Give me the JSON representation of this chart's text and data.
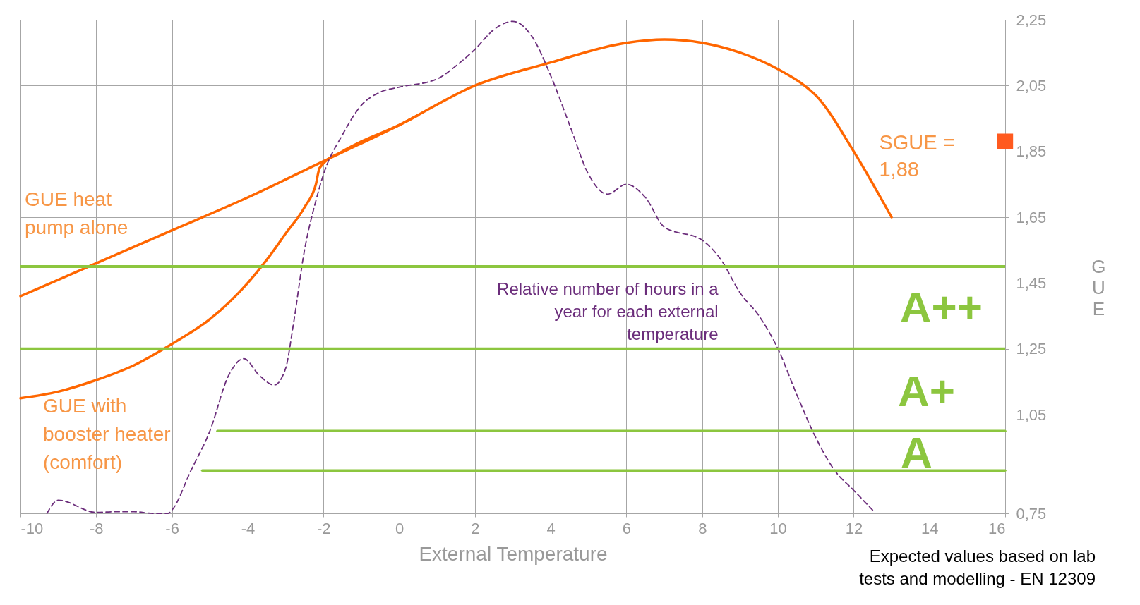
{
  "chart_data": {
    "type": "line",
    "xlabel": "External Temperature",
    "ylabel": "GUE",
    "xlim": [
      -10,
      16
    ],
    "xticks": [
      -10,
      -8,
      -6,
      -4,
      -2,
      0,
      2,
      4,
      6,
      8,
      10,
      12,
      14,
      16
    ],
    "ylim": [
      0.75,
      2.25
    ],
    "yticks": [
      {
        "value": 0.75,
        "label": "0,75"
      },
      {
        "value": 1.05,
        "label": "1,05"
      },
      {
        "value": 1.25,
        "label": "1,25"
      },
      {
        "value": 1.45,
        "label": "1,45"
      },
      {
        "value": 1.65,
        "label": "1,65"
      },
      {
        "value": 1.85,
        "label": "1,85"
      },
      {
        "value": 2.05,
        "label": "2,05"
      },
      {
        "value": 2.25,
        "label": "2,25"
      }
    ],
    "grid": true,
    "series": [
      {
        "name": "GUE heat pump alone",
        "color": "#ff6600",
        "line_style": "solid",
        "x": [
          -10,
          -8,
          -6,
          -4,
          -2,
          0,
          2,
          4,
          6,
          7,
          8,
          9,
          10,
          10.7,
          11,
          12,
          13
        ],
        "values": [
          1.41,
          1.51,
          1.61,
          1.71,
          1.82,
          1.93,
          2.05,
          2.12,
          2.18,
          2.19,
          2.18,
          2.15,
          2.1,
          2.05,
          2.02,
          1.85,
          1.65
        ]
      },
      {
        "name": "GUE with booster heater (comfort)",
        "color": "#ff6600",
        "line_style": "solid",
        "x": [
          -10,
          -9,
          -8,
          -7,
          -6,
          -5,
          -4,
          -3.5,
          -3,
          -2.5,
          -2.2,
          -2.1,
          -1.5,
          -1,
          0,
          0.5
        ],
        "values": [
          1.1,
          1.12,
          1.155,
          1.2,
          1.265,
          1.34,
          1.45,
          1.52,
          1.6,
          1.68,
          1.75,
          1.8,
          1.85,
          1.88,
          1.93,
          1.96
        ]
      },
      {
        "name": "Relative number of hours in a year for each external temperature",
        "color": "#6b2d7b",
        "line_style": "dashed",
        "x": [
          -9.3,
          -9,
          -8,
          -7.5,
          -7,
          -6.5,
          -6.1,
          -6,
          -5.5,
          -5,
          -4.5,
          -4.1,
          -3.7,
          -3.3,
          -3,
          -2.8,
          -2.5,
          -2.2,
          -2,
          -1.5,
          -1,
          -0.5,
          0,
          1,
          1.5,
          2,
          2.5,
          3,
          3.5,
          4,
          4.5,
          5,
          5.5,
          6,
          6.5,
          7,
          8,
          8.5,
          9,
          9.5,
          10,
          10.5,
          11,
          11.5,
          12,
          12.5
        ],
        "values": [
          0.75,
          0.79,
          0.753,
          0.755,
          0.755,
          0.75,
          0.75,
          0.76,
          0.88,
          1.0,
          1.17,
          1.22,
          1.17,
          1.14,
          1.19,
          1.32,
          1.55,
          1.7,
          1.78,
          1.9,
          1.99,
          2.03,
          2.045,
          2.07,
          2.11,
          2.16,
          2.22,
          2.245,
          2.2,
          2.08,
          1.93,
          1.78,
          1.72,
          1.75,
          1.71,
          1.62,
          1.58,
          1.52,
          1.42,
          1.35,
          1.25,
          1.11,
          0.98,
          0.88,
          0.82,
          0.76
        ]
      },
      {
        "color": "#8cc63f",
        "line_style": "solid",
        "x": [
          -4.8,
          16
        ],
        "values": [
          1.0,
          1.0
        ]
      },
      {
        "color": "#8cc63f",
        "line_style": "solid",
        "x": [
          -5.2,
          16
        ],
        "values": [
          0.88,
          0.88
        ]
      },
      {
        "type": "scatter",
        "color": "#ff5a1f",
        "marker": "square",
        "x": [
          16
        ],
        "values": [
          1.88
        ]
      }
    ],
    "ref_lines": [
      {
        "axis": "y",
        "value": 1.5,
        "color": "#8cc63f"
      },
      {
        "axis": "y",
        "value": 1.25,
        "color": "#8cc63f"
      }
    ],
    "annotations": [
      "A++",
      "A+",
      "A",
      "SGUE = 1,88",
      "Expected values based on lab tests and modelling - EN 12309"
    ]
  }
}
